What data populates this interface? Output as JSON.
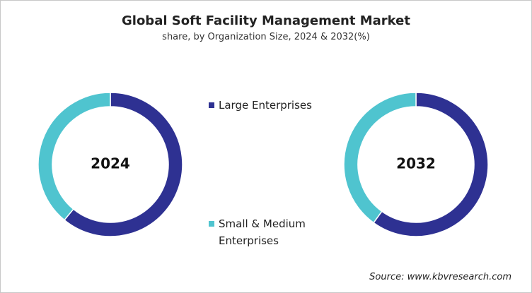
{
  "header": {
    "title": "Global Soft Facility Management Market",
    "subtitle": "share, by Organization Size, 2024 & 2032(%)"
  },
  "chart_data": [
    {
      "type": "donut",
      "title": "2024",
      "categories": [
        "Large Enterprises",
        "Small & Medium Enterprises"
      ],
      "values": [
        61,
        39
      ],
      "colors": [
        "#2e3192",
        "#4fc4cf"
      ]
    },
    {
      "type": "donut",
      "title": "2032",
      "categories": [
        "Large Enterprises",
        "Small & Medium Enterprises"
      ],
      "values": [
        60,
        40
      ],
      "colors": [
        "#2e3192",
        "#4fc4cf"
      ]
    }
  ],
  "source": "Source: www.kbvresearch.com"
}
